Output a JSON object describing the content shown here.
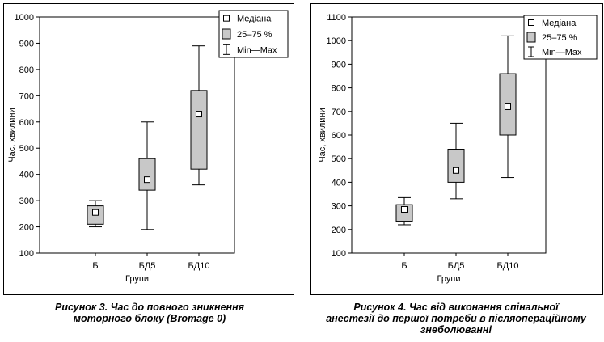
{
  "charts": [
    {
      "legend": {
        "median": "Медіана",
        "iqr": "25–75 %",
        "range": "Min—Max"
      },
      "caption": [
        "Рисунок 3. Час до повного зникнення",
        "моторного блоку (Bromage 0)"
      ],
      "chart_data": {
        "type": "boxplot",
        "title": "",
        "xlabel": "Групи",
        "ylabel": "Час, хвилини",
        "ylim": [
          100,
          1000
        ],
        "yticks": [
          100,
          200,
          300,
          400,
          500,
          600,
          700,
          800,
          900,
          1000
        ],
        "categories": [
          "Б",
          "БД5",
          "БД10"
        ],
        "min": [
          200,
          190,
          360
        ],
        "q1": [
          210,
          340,
          420
        ],
        "median": [
          255,
          380,
          630
        ],
        "q3": [
          280,
          460,
          720
        ],
        "max": [
          300,
          600,
          890
        ],
        "legend_position": "top-right",
        "grid": false
      }
    },
    {
      "legend": {
        "median": "Медіана",
        "iqr": "25–75 %",
        "range": "Min—Max"
      },
      "caption": [
        "Рисунок 4.  Час від виконання спінальної",
        "анестезії до першої потреби в післяопераційному",
        "знеболюванні"
      ],
      "chart_data": {
        "type": "boxplot",
        "title": "",
        "xlabel": "Групи",
        "ylabel": "Час, хвилини",
        "ylim": [
          100,
          1100
        ],
        "yticks": [
          100,
          200,
          300,
          400,
          500,
          600,
          700,
          800,
          900,
          1000,
          1100
        ],
        "categories": [
          "Б",
          "БД5",
          "БД10"
        ],
        "min": [
          220,
          330,
          420
        ],
        "q1": [
          235,
          400,
          600
        ],
        "median": [
          285,
          450,
          720
        ],
        "q3": [
          305,
          540,
          860
        ],
        "max": [
          335,
          650,
          1020
        ],
        "legend_position": "top-right",
        "grid": false
      }
    }
  ]
}
